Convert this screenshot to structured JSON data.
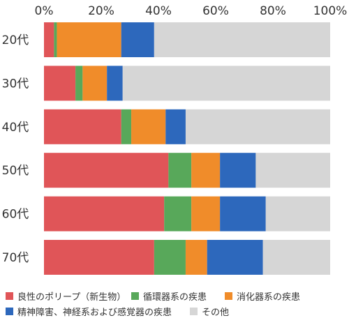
{
  "chart_data": {
    "type": "bar",
    "orientation": "horizontal",
    "stacked": true,
    "normalized_100": true,
    "categories": [
      "20代",
      "30代",
      "40代",
      "50代",
      "60代",
      "70代"
    ],
    "series": [
      {
        "name": "良性のポリープ（新生物）",
        "color": "#e05558",
        "values": [
          3.5,
          11,
          27,
          43.5,
          42,
          38.5
        ]
      },
      {
        "name": "循環器系の疾患",
        "color": "#58a85a",
        "values": [
          1,
          2.5,
          3.5,
          8,
          9.5,
          11
        ]
      },
      {
        "name": "消化器系の疾患",
        "color": "#f08c2a",
        "values": [
          22.5,
          8.5,
          12,
          10,
          10,
          7.5
        ]
      },
      {
        "name": "精神障害、神経系および感覚器の疾患",
        "color": "#2d68bc",
        "values": [
          11.5,
          5.5,
          7,
          12.5,
          16,
          19.5
        ]
      },
      {
        "name": "その他",
        "color": "#d6d6d6",
        "values": [
          61.5,
          72.5,
          50.5,
          26,
          22.5,
          23.5
        ]
      }
    ],
    "xlim": [
      0,
      100
    ],
    "xticks": [
      "0%",
      "20%",
      "40%",
      "60%",
      "80%",
      "100%"
    ],
    "grid": false,
    "legend_position": "bottom"
  }
}
